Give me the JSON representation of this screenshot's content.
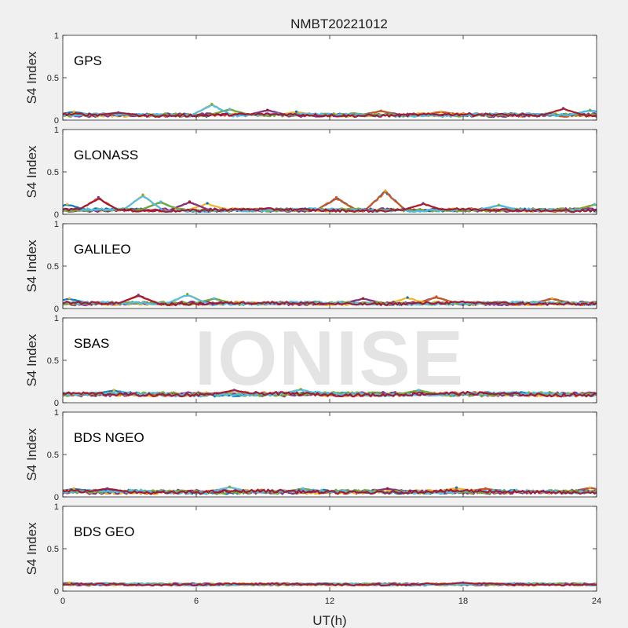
{
  "figure": {
    "title": "NMBT20221012",
    "watermark": "IONISE",
    "background": "#f0f0f0"
  },
  "chart_data": {
    "type": "scatter",
    "title": "NMBT20221012",
    "xlabel": "UT(h)",
    "ylabel": "S4 Index",
    "xlim": [
      0,
      24
    ],
    "ylim": [
      0,
      1
    ],
    "xticks": [
      0,
      6,
      12,
      18,
      24
    ],
    "yticks": [
      0,
      0.5,
      1
    ],
    "ytick_labels": [
      "0",
      "0.5",
      "1"
    ],
    "grid": false,
    "series_colors": [
      "#0072bd",
      "#d95319",
      "#edb120",
      "#7e2f8e",
      "#77ac30",
      "#4dbeee",
      "#a2142f"
    ],
    "panels": [
      {
        "label": "GPS",
        "baseline": 0.06,
        "spread": 0.015,
        "bumps": [
          {
            "x": 0.5,
            "y": 0.1
          },
          {
            "x": 2.5,
            "y": 0.09
          },
          {
            "x": 6.7,
            "y": 0.19
          },
          {
            "x": 7.5,
            "y": 0.13
          },
          {
            "x": 9.2,
            "y": 0.12
          },
          {
            "x": 10.5,
            "y": 0.1
          },
          {
            "x": 14.3,
            "y": 0.11
          },
          {
            "x": 17.0,
            "y": 0.1
          },
          {
            "x": 22.5,
            "y": 0.14
          },
          {
            "x": 23.7,
            "y": 0.12
          }
        ]
      },
      {
        "label": "GLONASS",
        "baseline": 0.05,
        "spread": 0.015,
        "bumps": [
          {
            "x": 0.2,
            "y": 0.12
          },
          {
            "x": 1.6,
            "y": 0.2
          },
          {
            "x": 3.6,
            "y": 0.23
          },
          {
            "x": 4.4,
            "y": 0.15
          },
          {
            "x": 5.7,
            "y": 0.15
          },
          {
            "x": 6.5,
            "y": 0.13
          },
          {
            "x": 12.3,
            "y": 0.2
          },
          {
            "x": 14.5,
            "y": 0.28
          },
          {
            "x": 16.2,
            "y": 0.13
          },
          {
            "x": 19.6,
            "y": 0.11
          },
          {
            "x": 23.9,
            "y": 0.12
          }
        ]
      },
      {
        "label": "GALILEO",
        "baseline": 0.06,
        "spread": 0.015,
        "bumps": [
          {
            "x": 0.3,
            "y": 0.12
          },
          {
            "x": 3.4,
            "y": 0.16
          },
          {
            "x": 5.6,
            "y": 0.17
          },
          {
            "x": 6.8,
            "y": 0.12
          },
          {
            "x": 13.5,
            "y": 0.12
          },
          {
            "x": 15.5,
            "y": 0.13
          },
          {
            "x": 16.8,
            "y": 0.14
          },
          {
            "x": 22.0,
            "y": 0.12
          }
        ]
      },
      {
        "label": "SBAS",
        "baseline": 0.1,
        "spread": 0.018,
        "bumps": [
          {
            "x": 2.3,
            "y": 0.15
          },
          {
            "x": 7.7,
            "y": 0.15
          },
          {
            "x": 10.7,
            "y": 0.16
          },
          {
            "x": 16.0,
            "y": 0.15
          }
        ]
      },
      {
        "label": "BDS NGEO",
        "baseline": 0.06,
        "spread": 0.018,
        "bumps": [
          {
            "x": 0.5,
            "y": 0.1
          },
          {
            "x": 2.0,
            "y": 0.1
          },
          {
            "x": 7.5,
            "y": 0.12
          },
          {
            "x": 10.8,
            "y": 0.1
          },
          {
            "x": 14.6,
            "y": 0.1
          },
          {
            "x": 17.7,
            "y": 0.11
          },
          {
            "x": 19.0,
            "y": 0.1
          },
          {
            "x": 23.7,
            "y": 0.11
          }
        ]
      },
      {
        "label": "BDS GEO",
        "baseline": 0.08,
        "spread": 0.01,
        "bumps": [
          {
            "x": 0.3,
            "y": 0.1
          },
          {
            "x": 18.0,
            "y": 0.1
          }
        ]
      }
    ]
  }
}
